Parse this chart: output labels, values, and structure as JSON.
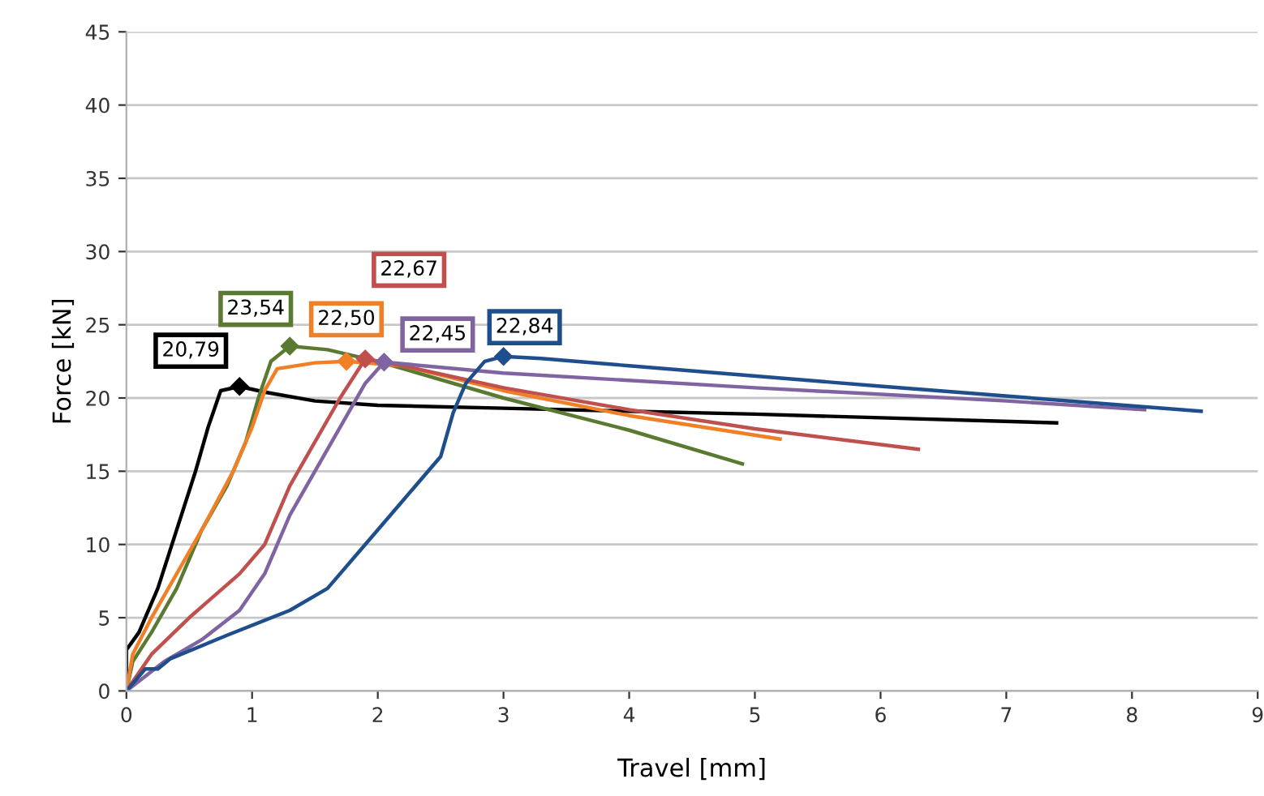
{
  "chart_data": {
    "type": "line",
    "xlabel": "Travel [mm]",
    "ylabel": "Force [kN]",
    "xlim": [
      0,
      9
    ],
    "xticks": [
      0,
      1,
      2,
      3,
      4,
      5,
      6,
      7,
      8,
      9
    ],
    "ylim": [
      0,
      45
    ],
    "yticks": [
      0,
      5,
      10,
      15,
      20,
      25,
      30,
      35,
      40,
      45
    ],
    "grid": "y",
    "legend": false,
    "marker": "none",
    "line_style": "solid",
    "series": [
      {
        "color": "#000000",
        "x": [
          0,
          0,
          0.1,
          0.25,
          0.4,
          0.55,
          0.65,
          0.75,
          0.9,
          1.1,
          1.5,
          2,
          3,
          5,
          7.4
        ],
        "values": [
          0,
          2.8,
          4,
          7,
          11,
          15,
          18,
          20.5,
          20.79,
          20.4,
          19.8,
          19.5,
          19.3,
          18.9,
          18.3
        ]
      },
      {
        "color": "#5a7a32",
        "x": [
          0,
          0.05,
          0.2,
          0.4,
          0.6,
          0.8,
          0.95,
          1.05,
          1.15,
          1.3,
          1.6,
          2,
          3,
          4,
          4.9
        ],
        "values": [
          0,
          2,
          4,
          7,
          11,
          14,
          17,
          20,
          22.5,
          23.54,
          23.3,
          22.5,
          20,
          17.8,
          15.5
        ]
      },
      {
        "color": "#f07f26",
        "x": [
          0,
          0.05,
          0.2,
          0.4,
          0.6,
          0.85,
          1.0,
          1.1,
          1.2,
          1.5,
          1.75,
          2.2,
          3,
          4,
          5.2
        ],
        "values": [
          0,
          2.5,
          5,
          8,
          11,
          15,
          18,
          20.5,
          22,
          22.4,
          22.5,
          22.2,
          20.5,
          18.8,
          17.2
        ]
      },
      {
        "color": "#c0504d",
        "x": [
          0,
          0.2,
          0.5,
          0.9,
          1.1,
          1.3,
          1.5,
          1.7,
          1.9,
          2.2,
          3,
          4,
          5,
          6.3
        ],
        "values": [
          0,
          2.5,
          5,
          8,
          10,
          14,
          17,
          20,
          22.67,
          22.2,
          20.7,
          19.2,
          17.9,
          16.5
        ]
      },
      {
        "color": "#8064a2",
        "x": [
          0,
          0.3,
          0.6,
          0.9,
          1.1,
          1.3,
          1.5,
          1.7,
          1.9,
          2.05,
          3,
          5,
          7,
          8.1
        ],
        "values": [
          0,
          2,
          3.5,
          5.5,
          8,
          12,
          15,
          18,
          21,
          22.45,
          21.7,
          20.7,
          19.8,
          19.2
        ]
      },
      {
        "color": "#1f4e8c",
        "x": [
          0,
          0.15,
          0.25,
          0.35,
          0.8,
          1.3,
          1.6,
          1.9,
          2.2,
          2.5,
          2.6,
          2.7,
          2.85,
          3.0,
          3.3,
          4,
          6,
          8.55
        ],
        "values": [
          0,
          1.5,
          1.5,
          2.2,
          3.8,
          5.5,
          7,
          10,
          13,
          16,
          19,
          21,
          22.5,
          22.84,
          22.7,
          22.2,
          20.8,
          19.1
        ]
      }
    ],
    "annotations": [
      {
        "text": "20,79",
        "x": 0.9,
        "y": 20.79
      },
      {
        "text": "23,54",
        "x": 1.3,
        "y": 23.54
      },
      {
        "text": "22,50",
        "x": 1.75,
        "y": 22.5
      },
      "22,67",
      {
        "text": "22,45",
        "x": 2.05,
        "y": 22.45
      },
      {
        "text": "22,84",
        "x": 3.0,
        "y": 22.84
      }
    ]
  }
}
